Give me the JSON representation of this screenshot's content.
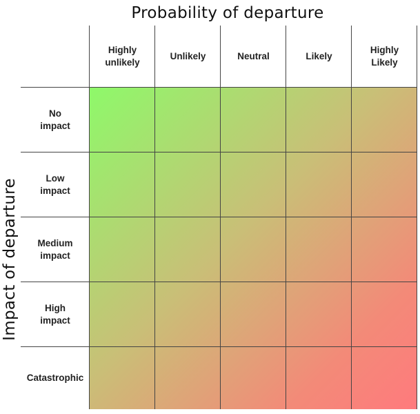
{
  "title": "Probability of departure",
  "y_axis_label": "Impact of departure",
  "columns": [
    "Highly\nunlikely",
    "Unlikely",
    "Neutral",
    "Likely",
    "Highly\nLikely"
  ],
  "rows": [
    "No\nimpact",
    "Low\nimpact",
    "Medium\nimpact",
    "High\nimpact",
    "Catastrophic"
  ],
  "colors": {
    "low_risk": "#8ef96a",
    "mid_risk": "#c9bf77",
    "high_risk": "#ff7a7d",
    "gridlines": "#444444"
  }
}
